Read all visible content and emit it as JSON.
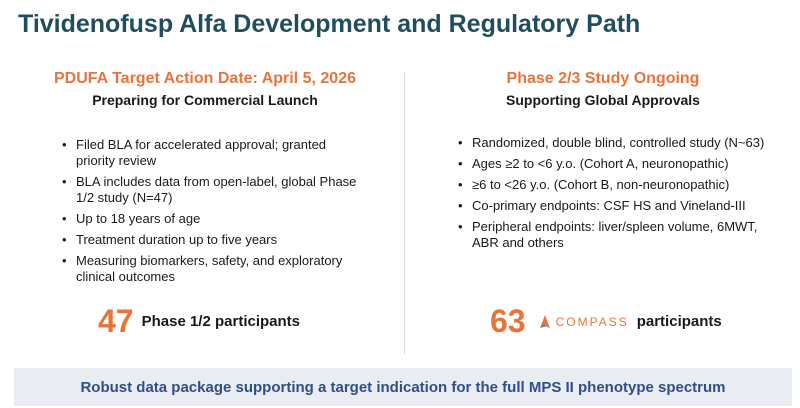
{
  "title": "Tividenofusp Alfa Development and Regulatory Path",
  "left": {
    "heading": "PDUFA Target Action Date: April 5, 2026",
    "subheading": "Preparing for Commercial Launch",
    "bullets": [
      "Filed BLA for accelerated approval; granted priority review",
      "BLA includes data from open-label, global Phase 1/2 study (N=47)",
      "Up to 18 years of age",
      "Treatment duration up to five years",
      "Measuring biomarkers, safety, and exploratory clinical outcomes"
    ],
    "stat_number": "47",
    "stat_label": "Phase 1/2 participants"
  },
  "right": {
    "heading": "Phase 2/3 Study Ongoing",
    "subheading": "Supporting Global Approvals",
    "bullets": [
      "Randomized, double blind, controlled study (N~63)",
      "Ages ≥2 to <6 y.o. (Cohort A, neuronopathic)",
      "≥6 to <26 y.o. (Cohort B, non-neuronopathic)",
      "Co-primary endpoints: CSF HS and Vineland-III",
      "Peripheral endpoints: liver/spleen volume, 6MWT, ABR and others"
    ],
    "stat_number": "63",
    "logo_text": "COMPASS",
    "stat_label": "participants"
  },
  "bullet_glyph": "•",
  "banner": "Robust data package supporting a target indication for the full MPS II phenotype spectrum",
  "colors": {
    "title": "#1f4e5f",
    "accent": "#e8743b",
    "banner_text": "#2f4f8a",
    "banner_bg": "#e9ecf1"
  },
  "icons": {
    "compass_logo": "compass-logo-icon"
  }
}
